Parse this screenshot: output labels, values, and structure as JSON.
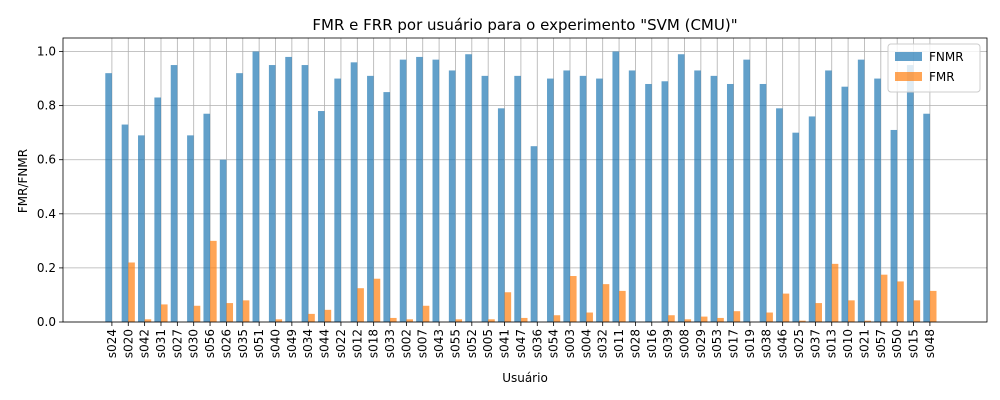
{
  "chart_data": {
    "type": "bar",
    "title": "FMR e FRR por usuário para o experimento \"SVM (CMU)\"",
    "xlabel": "Usuário",
    "ylabel": "FMR/FNMR",
    "ylim": [
      0,
      1.05
    ],
    "yticks": [
      "0.0",
      "0.2",
      "0.4",
      "0.6",
      "0.8",
      "1.0"
    ],
    "grid": true,
    "legend_position": "top-right",
    "categories": [
      "s024",
      "s020",
      "s042",
      "s031",
      "s027",
      "s030",
      "s056",
      "s026",
      "s035",
      "s051",
      "s040",
      "s049",
      "s034",
      "s044",
      "s022",
      "s012",
      "s018",
      "s033",
      "s002",
      "s007",
      "s043",
      "s055",
      "s052",
      "s005",
      "s041",
      "s047",
      "s036",
      "s054",
      "s003",
      "s004",
      "s032",
      "s011",
      "s028",
      "s016",
      "s039",
      "s008",
      "s029",
      "s053",
      "s017",
      "s019",
      "s038",
      "s046",
      "s025",
      "s037",
      "s013",
      "s010",
      "s021",
      "s057",
      "s050",
      "s015",
      "s048"
    ],
    "series": [
      {
        "name": "FNMR",
        "color": "#1f77b4",
        "values": [
          0.92,
          0.73,
          0.69,
          0.83,
          0.95,
          0.69,
          0.77,
          0.6,
          0.92,
          1.0,
          0.95,
          0.98,
          0.95,
          0.78,
          0.9,
          0.96,
          0.91,
          0.85,
          0.97,
          0.98,
          0.97,
          0.93,
          0.99,
          0.91,
          0.79,
          0.91,
          0.65,
          0.9,
          0.93,
          0.91,
          0.9,
          1.0,
          0.93,
          0.88,
          0.89,
          0.99,
          0.93,
          0.91,
          0.88,
          0.97,
          0.88,
          0.79,
          0.7,
          0.76,
          0.93,
          0.87,
          0.97,
          0.9,
          0.71,
          0.95,
          0.77
        ]
      },
      {
        "name": "FMR",
        "color": "#ff7f0e",
        "values": [
          0.0,
          0.22,
          0.01,
          0.065,
          0.0,
          0.06,
          0.3,
          0.07,
          0.08,
          0.0,
          0.01,
          0.0,
          0.03,
          0.045,
          0.0,
          0.125,
          0.16,
          0.015,
          0.01,
          0.06,
          0.0,
          0.01,
          0.0,
          0.01,
          0.11,
          0.015,
          0.0,
          0.025,
          0.17,
          0.035,
          0.14,
          0.115,
          0.0,
          0.0,
          0.025,
          0.01,
          0.02,
          0.015,
          0.04,
          0.0,
          0.035,
          0.105,
          0.005,
          0.07,
          0.215,
          0.08,
          0.005,
          0.175,
          0.15,
          0.08,
          0.115
        ]
      }
    ]
  }
}
